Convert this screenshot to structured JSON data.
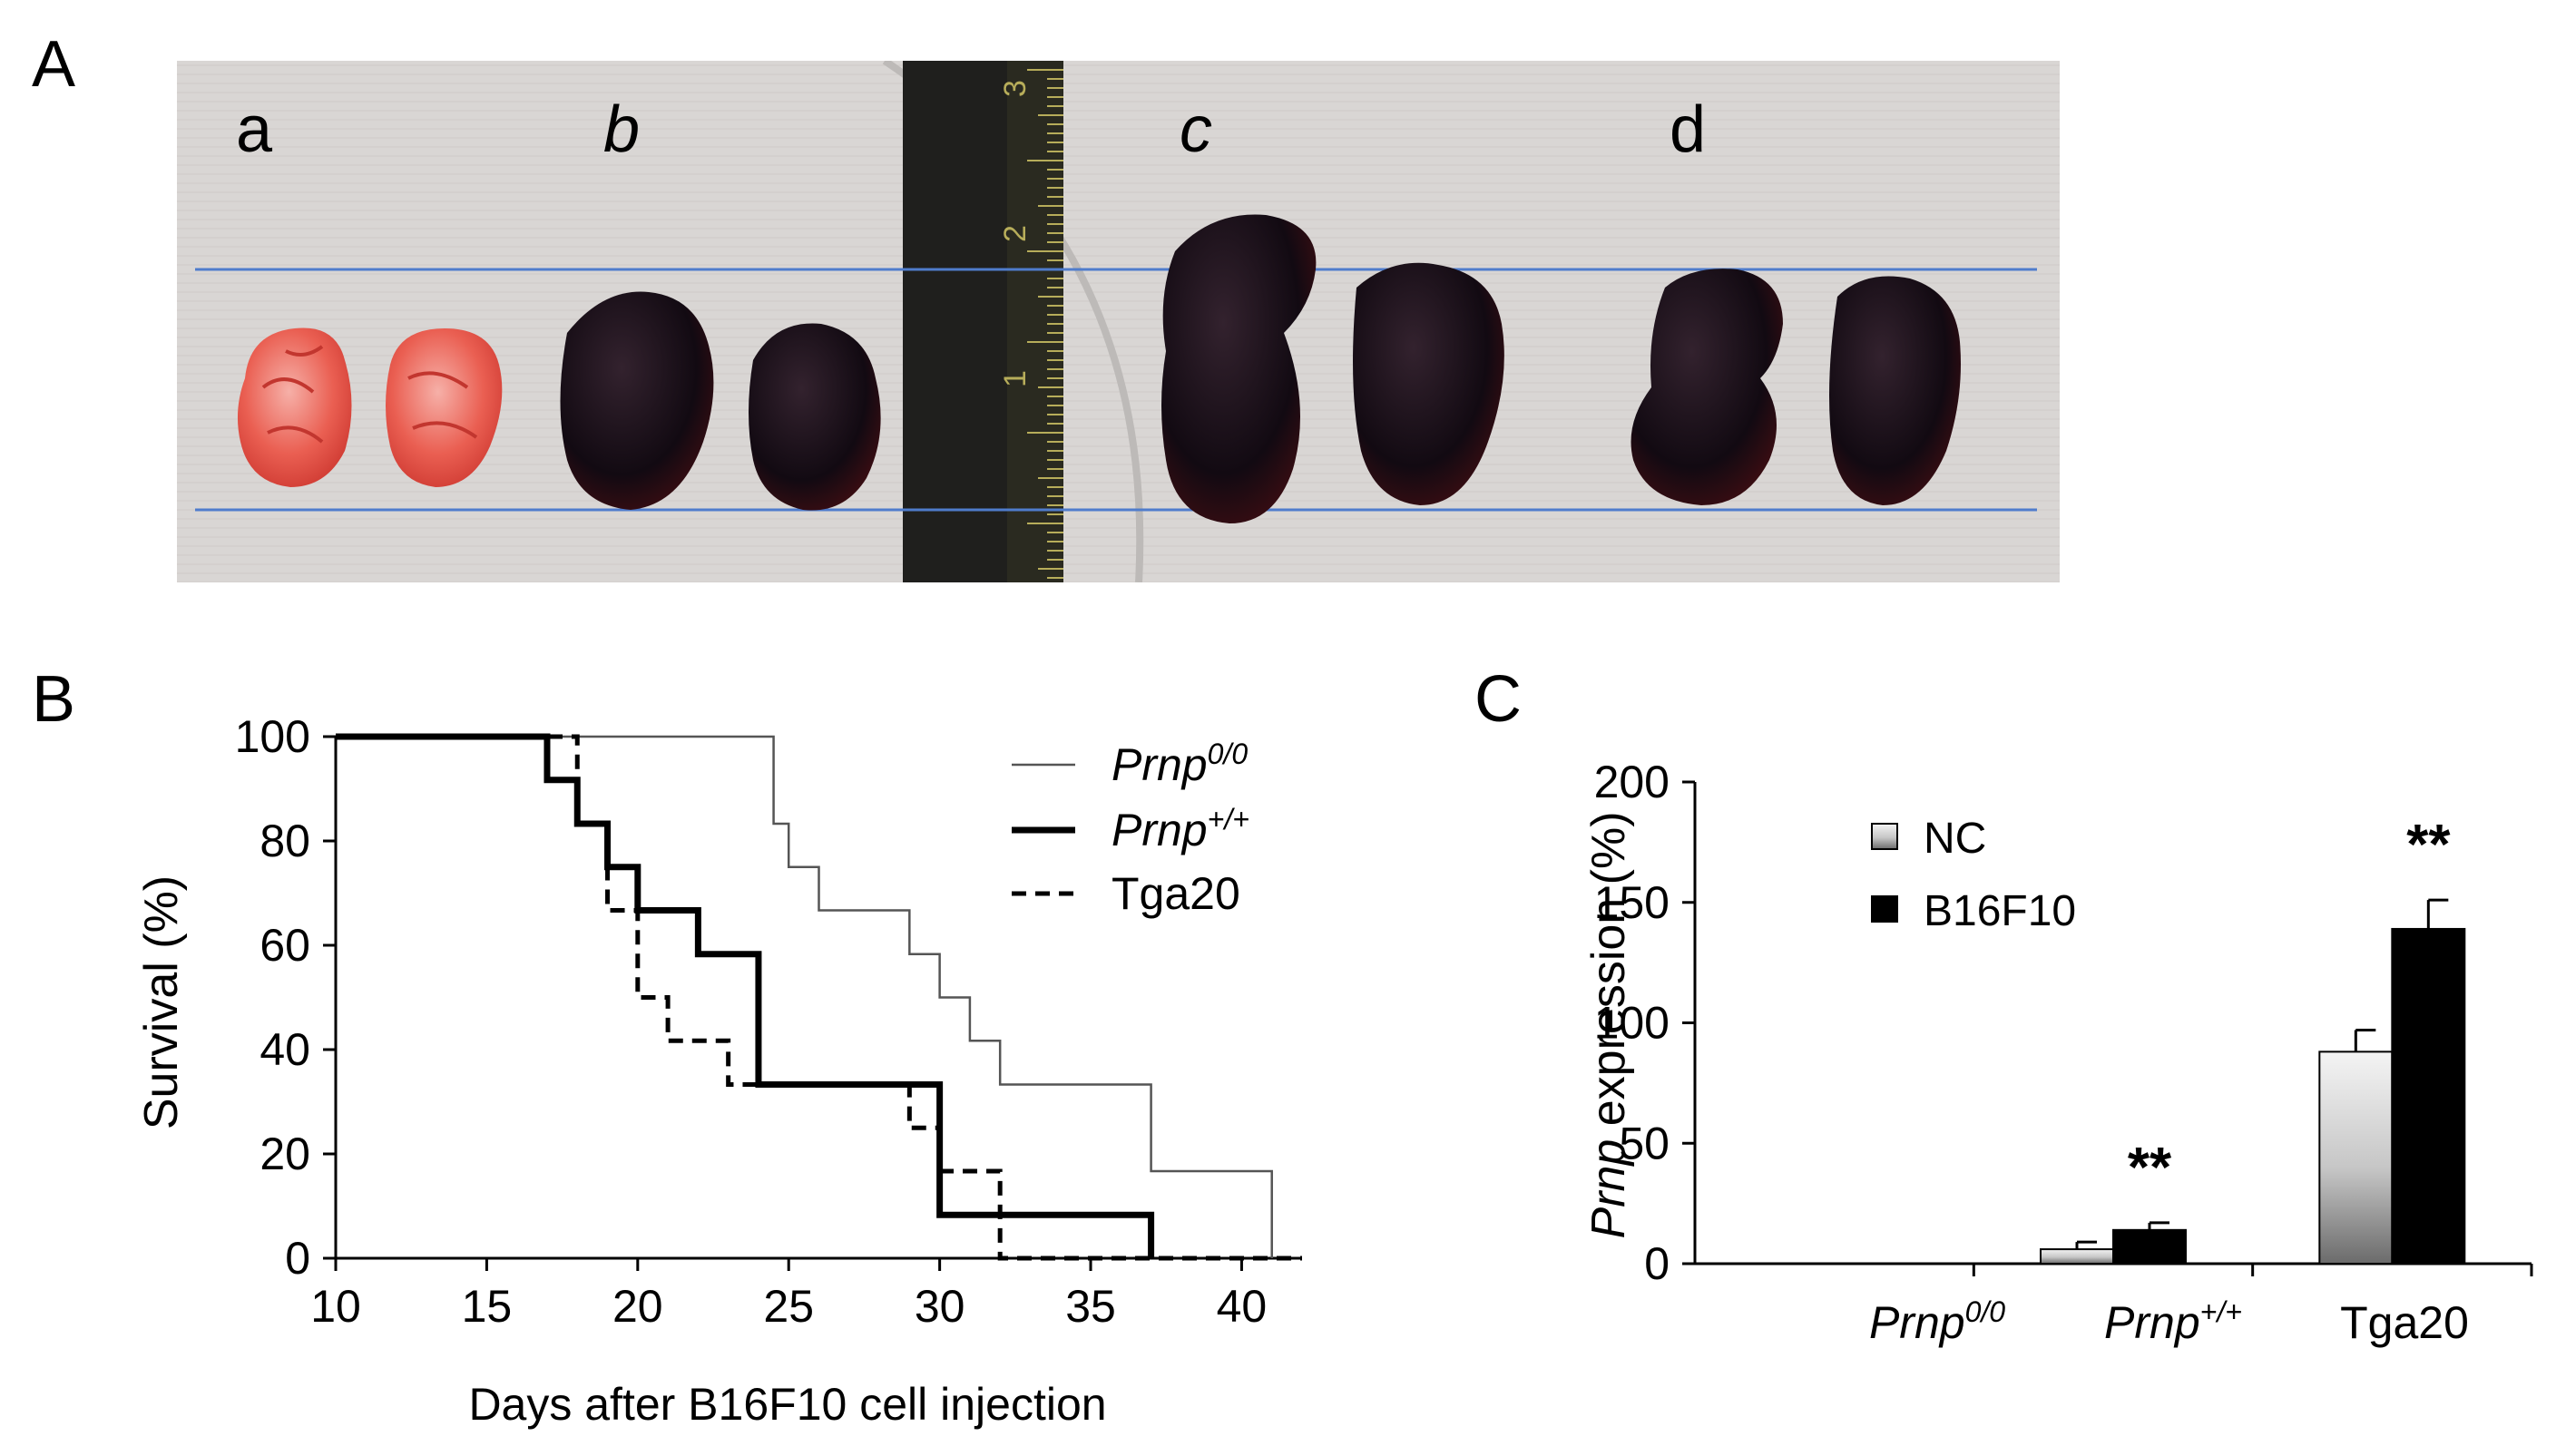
{
  "panels": {
    "a": "A",
    "b": "B",
    "c": "C"
  },
  "photo": {
    "labels": [
      "a",
      "b",
      "c",
      "d"
    ],
    "ruler_numbers": [
      "1",
      "2",
      "3"
    ]
  },
  "chart_data": [
    {
      "type": "line",
      "subtype": "kaplan-meier step",
      "xlabel": "Days after B16F10 cell injection",
      "ylabel": "Survival (%)",
      "xlim": [
        10,
        42
      ],
      "ylim": [
        0,
        100
      ],
      "xticks": [
        10,
        15,
        20,
        25,
        30,
        35,
        40
      ],
      "yticks": [
        0,
        20,
        40,
        60,
        80,
        100
      ],
      "legend": "top-right",
      "series": [
        {
          "name": "Prnp",
          "name_sup": "0/0",
          "style": "thin solid",
          "color": "#555555",
          "x": [
            10,
            24,
            24.5,
            25,
            26,
            29,
            30,
            31,
            32,
            37,
            41
          ],
          "y": [
            100,
            100,
            83.3,
            75,
            66.7,
            58.3,
            50,
            41.7,
            33.3,
            16.7,
            0
          ]
        },
        {
          "name": "Prnp",
          "name_sup": "+/+",
          "style": "thick solid",
          "color": "#000000",
          "x": [
            10,
            17,
            18,
            19,
            20,
            22,
            24,
            30,
            37
          ],
          "y": [
            100,
            91.7,
            83.3,
            75,
            66.7,
            58.3,
            33.3,
            8.3,
            0
          ]
        },
        {
          "name": "Tga20",
          "style": "dashed",
          "color": "#000000",
          "x": [
            10,
            18,
            19,
            20,
            21,
            23,
            29,
            30,
            32,
            42
          ],
          "y": [
            100,
            83.3,
            66.7,
            50,
            41.7,
            33.3,
            25,
            16.7,
            0,
            0
          ]
        }
      ]
    },
    {
      "type": "bar",
      "ylabel_italic": "Prnp",
      "ylabel_rest": " expression (%)",
      "ylim": [
        0,
        200
      ],
      "yticks": [
        0,
        50,
        100,
        150,
        200
      ],
      "categories": [
        {
          "main": "Prnp",
          "sup": "0/0",
          "italic": true
        },
        {
          "main": "Prnp",
          "sup": "+/+",
          "italic": true
        },
        {
          "main": "Tga20",
          "sup": "",
          "italic": false
        }
      ],
      "legend": "top-left",
      "series": [
        {
          "name": "NC",
          "values": [
            0,
            6,
            88
          ],
          "errors": [
            0,
            3,
            9
          ],
          "fill": "gradient-light"
        },
        {
          "name": "B16F10",
          "values": [
            0,
            14,
            139
          ],
          "errors": [
            0,
            3,
            12
          ],
          "fill": "#000000"
        }
      ],
      "annotations": [
        {
          "category": 1,
          "text": "**"
        },
        {
          "category": 2,
          "text": "**"
        }
      ]
    }
  ]
}
